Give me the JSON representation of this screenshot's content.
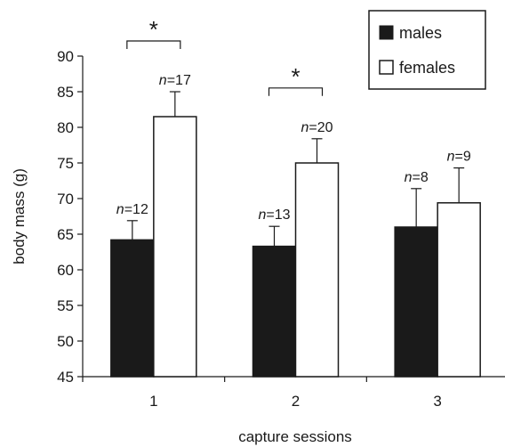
{
  "chart_data": {
    "type": "bar",
    "xlabel": "capture sessions",
    "ylabel": "body mass (g)",
    "ylim": [
      45,
      90
    ],
    "yticks": [
      45,
      50,
      55,
      60,
      65,
      70,
      75,
      80,
      85,
      90
    ],
    "grid": false,
    "legend_position": "top-right",
    "categories": [
      "1",
      "2",
      "3"
    ],
    "series": [
      {
        "name": "males",
        "fill": "#1a1a1a",
        "values": [
          64.2,
          63.3,
          66.0
        ],
        "error_upper": [
          66.9,
          66.1,
          71.4
        ],
        "n_labels": [
          "n=12",
          "n=13",
          "n=8"
        ]
      },
      {
        "name": "females",
        "fill": "#ffffff",
        "values": [
          81.5,
          75.0,
          69.4
        ],
        "error_upper": [
          85.0,
          78.4,
          74.3
        ],
        "n_labels": [
          "n=17",
          "n=20",
          "n=9"
        ]
      }
    ],
    "significance": [
      {
        "category": "1",
        "label": "*"
      },
      {
        "category": "2",
        "label": "*"
      }
    ]
  }
}
